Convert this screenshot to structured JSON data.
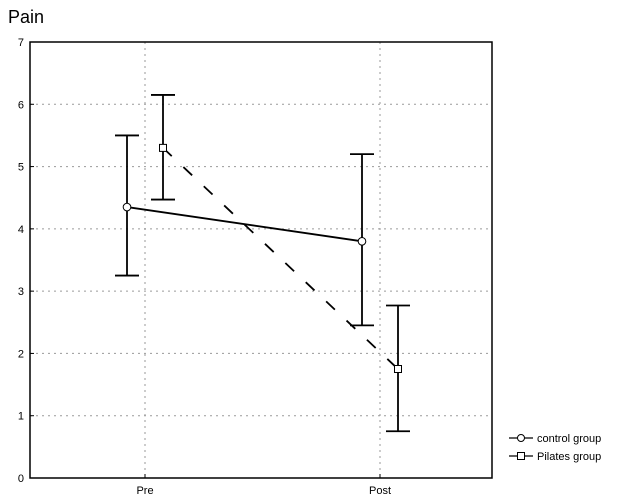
{
  "chart_data": {
    "type": "line",
    "title": "Pain",
    "xlabel": "",
    "ylabel": "",
    "categories": [
      "Pre",
      "Post"
    ],
    "ylim": [
      0,
      7
    ],
    "yticks": [
      "0",
      "1",
      "2",
      "3",
      "4",
      "5",
      "6",
      "7"
    ],
    "grid": true,
    "legend_position": "bottom-right, outside plot",
    "series": [
      {
        "name": "control group",
        "marker": "circle",
        "line_style": "solid",
        "values": [
          4.35,
          3.8
        ],
        "error_low": [
          3.25,
          2.45
        ],
        "error_high": [
          5.5,
          5.2
        ]
      },
      {
        "name": "Pilates group",
        "marker": "square",
        "line_style": "dashed",
        "values": [
          5.3,
          1.75
        ],
        "error_low": [
          4.47,
          0.75
        ],
        "error_high": [
          6.15,
          2.77
        ]
      }
    ]
  }
}
